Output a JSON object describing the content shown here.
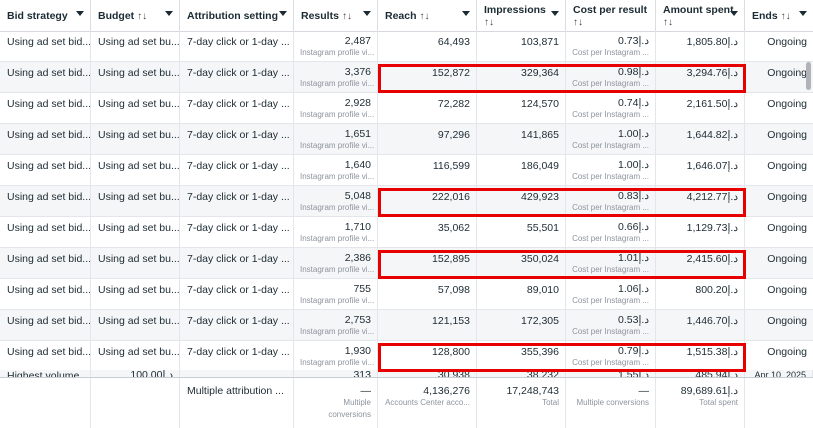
{
  "headers": {
    "bid_strategy": "Bid strategy",
    "budget": "Budget",
    "attribution": "Attribution setting",
    "results": "Results",
    "reach": "Reach",
    "impressions": "Impressions",
    "cost_per_result": "Cost per result",
    "amount_spent": "Amount spent",
    "ends": "Ends",
    "sort_glyph": "↑↓"
  },
  "rows": [
    {
      "bid": "Using ad set bid...",
      "budget": "Using ad set bu...",
      "attr": "7-day click or 1-day ...",
      "results": "2,487",
      "results_sub": "Instagram profile vi...",
      "reach": "64,493",
      "impr": "103,871",
      "cpr": "0.73د.إ",
      "cpr_sub": "Cost per Instagram ...",
      "spent": "1,805.80د.إ",
      "ends": "Ongoing"
    },
    {
      "bid": "Using ad set bid...",
      "budget": "Using ad set bu...",
      "attr": "7-day click or 1-day ...",
      "results": "3,376",
      "results_sub": "Instagram profile vi...",
      "reach": "152,872",
      "impr": "329,364",
      "cpr": "0.98د.إ",
      "cpr_sub": "Cost per Instagram ...",
      "spent": "3,294.76د.إ",
      "ends": "Ongoing"
    },
    {
      "bid": "Using ad set bid...",
      "budget": "Using ad set bu...",
      "attr": "7-day click or 1-day ...",
      "results": "2,928",
      "results_sub": "Instagram profile vi...",
      "reach": "72,282",
      "impr": "124,570",
      "cpr": "0.74د.إ",
      "cpr_sub": "Cost per Instagram ...",
      "spent": "2,161.50د.إ",
      "ends": "Ongoing"
    },
    {
      "bid": "Using ad set bid...",
      "budget": "Using ad set bu...",
      "attr": "7-day click or 1-day ...",
      "results": "1,651",
      "results_sub": "Instagram profile vi...",
      "reach": "97,296",
      "impr": "141,865",
      "cpr": "1.00د.إ",
      "cpr_sub": "Cost per Instagram ...",
      "spent": "1,644.82د.إ",
      "ends": "Ongoing"
    },
    {
      "bid": "Using ad set bid...",
      "budget": "Using ad set bu...",
      "attr": "7-day click or 1-day ...",
      "results": "1,640",
      "results_sub": "Instagram profile vi...",
      "reach": "116,599",
      "impr": "186,049",
      "cpr": "1.00د.إ",
      "cpr_sub": "Cost per Instagram ...",
      "spent": "1,646.07د.إ",
      "ends": "Ongoing"
    },
    {
      "bid": "Using ad set bid...",
      "budget": "Using ad set bu...",
      "attr": "7-day click or 1-day ...",
      "results": "5,048",
      "results_sub": "Instagram profile vi...",
      "reach": "222,016",
      "impr": "429,923",
      "cpr": "0.83د.إ",
      "cpr_sub": "Cost per Instagram ...",
      "spent": "4,212.77د.إ",
      "ends": "Ongoing"
    },
    {
      "bid": "Using ad set bid...",
      "budget": "Using ad set bu...",
      "attr": "7-day click or 1-day ...",
      "results": "1,710",
      "results_sub": "Instagram profile vi...",
      "reach": "35,062",
      "impr": "55,501",
      "cpr": "0.66د.إ",
      "cpr_sub": "Cost per Instagram ...",
      "spent": "1,129.73د.إ",
      "ends": "Ongoing"
    },
    {
      "bid": "Using ad set bid...",
      "budget": "Using ad set bu...",
      "attr": "7-day click or 1-day ...",
      "results": "2,386",
      "results_sub": "Instagram profile vi...",
      "reach": "152,895",
      "impr": "350,024",
      "cpr": "1.01د.إ",
      "cpr_sub": "Cost per Instagram ...",
      "spent": "2,415.60د.إ",
      "ends": "Ongoing"
    },
    {
      "bid": "Using ad set bid...",
      "budget": "Using ad set bu...",
      "attr": "7-day click or 1-day ...",
      "results": "755",
      "results_sub": "Instagram profile vi...",
      "reach": "57,098",
      "impr": "89,010",
      "cpr": "1.06د.إ",
      "cpr_sub": "Cost per Instagram ...",
      "spent": "800.20د.إ",
      "ends": "Ongoing"
    },
    {
      "bid": "Using ad set bid...",
      "budget": "Using ad set bu...",
      "attr": "7-day click or 1-day ...",
      "results": "2,753",
      "results_sub": "Instagram profile vi...",
      "reach": "121,153",
      "impr": "172,305",
      "cpr": "0.53د.إ",
      "cpr_sub": "Cost per Instagram ...",
      "spent": "1,446.70د.إ",
      "ends": "Ongoing"
    },
    {
      "bid": "Using ad set bid...",
      "budget": "Using ad set bu...",
      "attr": "7-day click or 1-day ...",
      "results": "1,930",
      "results_sub": "Instagram profile vi...",
      "reach": "128,800",
      "impr": "355,396",
      "cpr": "0.79د.إ",
      "cpr_sub": "Cost per Instagram ...",
      "spent": "1,515.38د.إ",
      "ends": "Ongoing"
    }
  ],
  "partial_row": {
    "bid": "Highest volume",
    "budget": "100.00د.إ",
    "results": "313",
    "reach": "30,938",
    "impr": "38,232",
    "cpr": "1.55د.إ",
    "spent": "485.94د.إ",
    "ends": "Apr 10, 2025"
  },
  "footer": {
    "attr": "Multiple attribution ...",
    "results": "—",
    "results_sub": "Multiple conversions",
    "reach": "4,136,276",
    "reach_sub": "Accounts Center acco...",
    "impr": "17,248,743",
    "impr_sub": "Total",
    "cpr": "—",
    "cpr_sub": "Multiple conversions",
    "spent": "89,689.61د.إ",
    "spent_sub": "Total spent"
  },
  "highlighted_rows": [
    1,
    5,
    7,
    10
  ],
  "colors": {
    "highlight": "#e60000",
    "alt_row": "#f5f6f7",
    "text": "#1c2b33",
    "subtext": "#8d949e"
  }
}
